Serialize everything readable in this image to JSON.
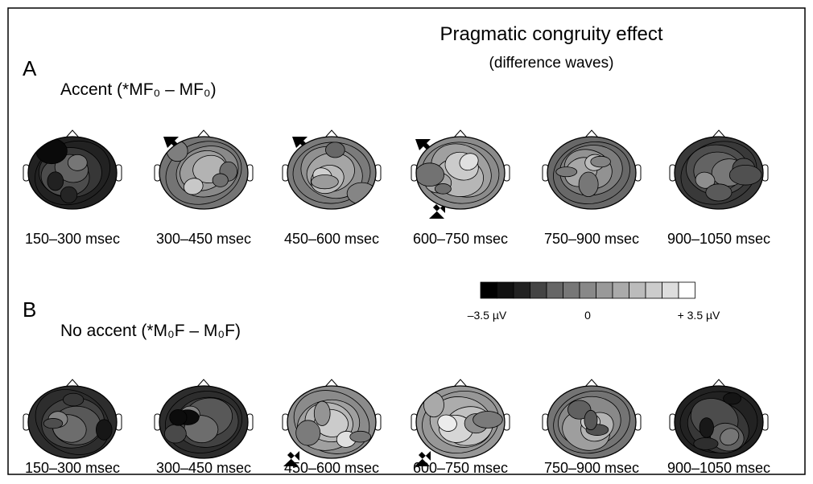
{
  "title": "Pragmatic congruity effect",
  "subtitle": "(difference waves)",
  "panels": [
    {
      "letter": "A",
      "label": "Accent (*MF₀ – MF₀)",
      "times": [
        "150–300 msec",
        "300–450 msec",
        "450–600 msec",
        "600–750 msec",
        "750–900 msec",
        "900–1050 msec"
      ]
    },
    {
      "letter": "B",
      "label": "No accent (*M₀F – M₀F)",
      "times": [
        "150–300 msec",
        "300–450 msec",
        "450–600 msec",
        "600–750 msec",
        "750–900 msec",
        "900–1050 msec"
      ]
    }
  ],
  "scale": {
    "min_label": "–3.5 µV",
    "mid_label": "0",
    "max_label": "+ 3.5 µV"
  }
}
